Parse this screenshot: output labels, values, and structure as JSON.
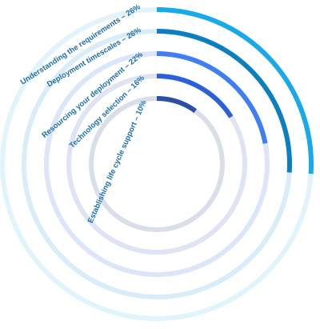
{
  "chart_data": {
    "type": "radial-bar",
    "categories": [
      "Understanding the requirements – 26%",
      "Deployment timescales – 26%",
      "Resourcing your deployment – 22%",
      "Technology selection – 16%",
      "Establishing life cycle support – 10%"
    ],
    "values": [
      26,
      26,
      22,
      16,
      10
    ],
    "colors": [
      "#17a9e8",
      "#0c7fbf",
      "#3f7ff2",
      "#2c60d6",
      "#2b4fa6"
    ],
    "track_colors": [
      "#e2f4fb",
      "#d8edf8",
      "#dce6f8",
      "#dfe3f4",
      "#d9dee9"
    ],
    "max": 100
  }
}
